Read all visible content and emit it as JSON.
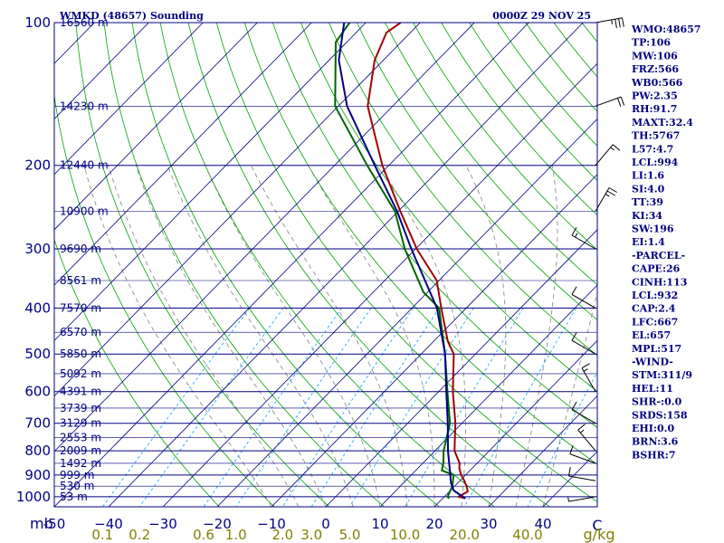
{
  "chart_data": {
    "type": "skew-t",
    "title": "WMKD (48657) Sounding",
    "datetime": "0000Z 29 NOV 25",
    "pressure_axis": {
      "label": "mb",
      "ticks": [
        100,
        200,
        300,
        400,
        500,
        600,
        700,
        800,
        900,
        1000
      ],
      "range": [
        100,
        1050
      ]
    },
    "temperature_axis": {
      "unit": "C",
      "ticks": [
        -50,
        -40,
        -30,
        -20,
        -10,
        0,
        10,
        20,
        30,
        40
      ],
      "tick_labels": [
        "-50",
        "−40",
        "−30",
        "−20",
        "−10",
        "0",
        "10",
        "20",
        "30",
        "40"
      ],
      "end_label": "C",
      "range": [
        -50,
        50
      ]
    },
    "mixing_ratio_labels": [
      "0.1",
      "0.2",
      "0.6",
      "1.0",
      "2.0",
      "3.0",
      "5.0",
      "10.0",
      "20.0",
      "40.0"
    ],
    "mixing_ratio_values": [
      0.1,
      0.2,
      0.6,
      1.0,
      2.0,
      3.0,
      5.0,
      10.0,
      20.0,
      40.0
    ],
    "mixing_ratio_unit": "g/kg",
    "height_labels": [
      {
        "pressure": 100,
        "text": "16560 m"
      },
      {
        "pressure": 150,
        "text": "14230 m"
      },
      {
        "pressure": 200,
        "text": "12440 m"
      },
      {
        "pressure": 250,
        "text": "10900 m"
      },
      {
        "pressure": 300,
        "text": "9690 m"
      },
      {
        "pressure": 350,
        "text": "8561 m"
      },
      {
        "pressure": 400,
        "text": "7570 m"
      },
      {
        "pressure": 450,
        "text": "6570 m"
      },
      {
        "pressure": 500,
        "text": "5850 m"
      },
      {
        "pressure": 550,
        "text": "5092 m"
      },
      {
        "pressure": 600,
        "text": "4391 m"
      },
      {
        "pressure": 650,
        "text": "3739 m"
      },
      {
        "pressure": 700,
        "text": "3129 m"
      },
      {
        "pressure": 750,
        "text": "2553 m"
      },
      {
        "pressure": 800,
        "text": "2009 m"
      },
      {
        "pressure": 850,
        "text": "1492 m"
      },
      {
        "pressure": 900,
        "text": "999 m"
      },
      {
        "pressure": 950,
        "text": "530 m"
      },
      {
        "pressure": 1000,
        "text": "53 m"
      }
    ],
    "series": [
      {
        "name": "temperature",
        "color": "#a00000",
        "points": [
          {
            "p": 1008,
            "t": 24.2
          },
          {
            "p": 1000,
            "t": 22.6
          },
          {
            "p": 975,
            "t": 23.4
          },
          {
            "p": 950,
            "t": 22.2
          },
          {
            "p": 925,
            "t": 20.8
          },
          {
            "p": 900,
            "t": 19.2
          },
          {
            "p": 870,
            "t": 17.6
          },
          {
            "p": 850,
            "t": 16.8
          },
          {
            "p": 800,
            "t": 13.6
          },
          {
            "p": 700,
            "t": 8.8
          },
          {
            "p": 600,
            "t": 2.6
          },
          {
            "p": 500,
            "t": -4.0
          },
          {
            "p": 470,
            "t": -7.4
          },
          {
            "p": 400,
            "t": -14.6
          },
          {
            "p": 350,
            "t": -20.4
          },
          {
            "p": 300,
            "t": -29.8
          },
          {
            "p": 250,
            "t": -39.6
          },
          {
            "p": 200,
            "t": -51.2
          },
          {
            "p": 150,
            "t": -64.6
          },
          {
            "p": 120,
            "t": -71.6
          },
          {
            "p": 105,
            "t": -74.4
          },
          {
            "p": 100,
            "t": -73.6
          }
        ]
      },
      {
        "name": "dewpoint",
        "color": "#006400",
        "points": [
          {
            "p": 1008,
            "t": 21.2
          },
          {
            "p": 1000,
            "t": 20.6
          },
          {
            "p": 950,
            "t": 19.6
          },
          {
            "p": 900,
            "t": 17.8
          },
          {
            "p": 880,
            "t": 14.8
          },
          {
            "p": 850,
            "t": 13.8
          },
          {
            "p": 800,
            "t": 11.6
          },
          {
            "p": 700,
            "t": 7.8
          },
          {
            "p": 600,
            "t": 1.6
          },
          {
            "p": 500,
            "t": -5.6
          },
          {
            "p": 400,
            "t": -15.0
          },
          {
            "p": 370,
            "t": -20.8
          },
          {
            "p": 300,
            "t": -32.0
          },
          {
            "p": 250,
            "t": -40.6
          },
          {
            "p": 200,
            "t": -54.0
          },
          {
            "p": 150,
            "t": -70.6
          },
          {
            "p": 110,
            "t": -82.0
          },
          {
            "p": 100,
            "t": -83.0
          }
        ]
      },
      {
        "name": "parcel",
        "color": "#000080",
        "points": [
          {
            "p": 1008,
            "t": 24.2
          },
          {
            "p": 970,
            "t": 20.6
          },
          {
            "p": 932,
            "t": 18.6
          },
          {
            "p": 900,
            "t": 17.2
          },
          {
            "p": 800,
            "t": 12.4
          },
          {
            "p": 700,
            "t": 7.4
          },
          {
            "p": 600,
            "t": 1.4
          },
          {
            "p": 500,
            "t": -5.6
          },
          {
            "p": 400,
            "t": -15.4
          },
          {
            "p": 300,
            "t": -30.8
          },
          {
            "p": 250,
            "t": -40.2
          },
          {
            "p": 200,
            "t": -52.6
          },
          {
            "p": 150,
            "t": -68.4
          },
          {
            "p": 120,
            "t": -78.2
          },
          {
            "p": 100,
            "t": -84.0
          }
        ]
      }
    ],
    "wind_barbs": [
      {
        "p": 100,
        "dir": 80,
        "kt": 35
      },
      {
        "p": 150,
        "dir": 70,
        "kt": 20
      },
      {
        "p": 200,
        "dir": 40,
        "kt": 15
      },
      {
        "p": 250,
        "dir": 30,
        "kt": 25
      },
      {
        "p": 300,
        "dir": 300,
        "kt": 15
      },
      {
        "p": 400,
        "dir": 300,
        "kt": 10
      },
      {
        "p": 500,
        "dir": 300,
        "kt": 10
      },
      {
        "p": 600,
        "dir": 330,
        "kt": 15
      },
      {
        "p": 700,
        "dir": 300,
        "kt": 10
      },
      {
        "p": 800,
        "dir": 320,
        "kt": 15
      },
      {
        "p": 850,
        "dir": 290,
        "kt": 10
      },
      {
        "p": 925,
        "dir": 280,
        "kt": 10
      },
      {
        "p": 1000,
        "dir": 260,
        "kt": 5
      }
    ],
    "indices": [
      "WMO:48657",
      "TP:106",
      "MW:106",
      "FRZ:566",
      "WB0:566",
      "PW:2.35",
      "RH:91.7",
      "MAXT:32.4",
      "TH:5767",
      "L57:4.7",
      "LCL:994",
      "LI:1.6",
      "SI:4.0",
      "TT:39",
      "KI:34",
      "SW:196",
      "EI:1.4",
      "-PARCEL-",
      "CAPE:26",
      "CINH:113",
      "LCL:932",
      "CAP:2.4",
      "LFC:667",
      "EL:657",
      "MPL:517",
      "-WIND-",
      "STM:311/9",
      "HEL:11",
      "SHR-:0.0",
      "SRDS:158",
      "EHI:0.0",
      "BRN:3.6",
      "BSHR:7"
    ]
  },
  "colors": {
    "frame": "#000080",
    "isobar": "#000080",
    "isotherm": "#000080",
    "dry_adiabat": "#00a000",
    "moist_adiabat": "#808080",
    "mixing_ratio": "#00a0ff",
    "mixing_label": "#808000",
    "text": "#000080"
  }
}
